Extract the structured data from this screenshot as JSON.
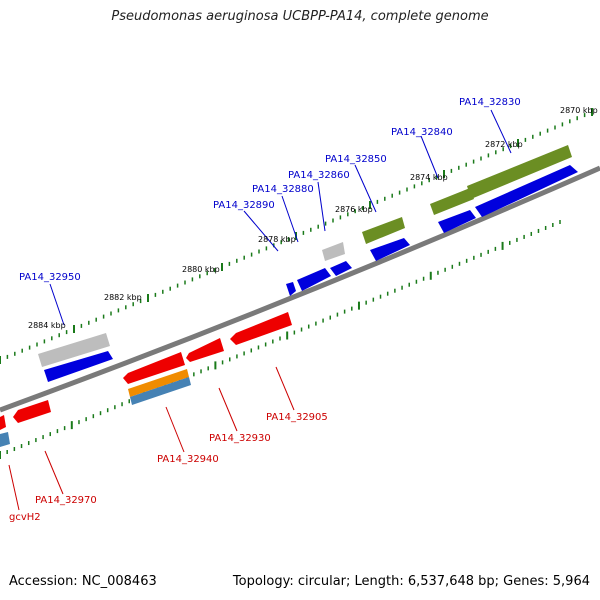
{
  "title": "Pseudomonas aeruginosa UCBPP-PA14, complete genome",
  "footer": {
    "accession": "Accession: NC_008463",
    "summary": "Topology: circular; Length: 6,537,648 bp; Genes: 5,964"
  },
  "colors": {
    "backbone": "#7a7a7a",
    "tick": "#1a7a1a",
    "forward_gene": "#0000dd",
    "reverse_gene": "#ee0000",
    "forward_label": "#0000cc",
    "reverse_label": "#cc0000",
    "olive_feature": "#6b8e23",
    "gray_feature": "#bdbdbd",
    "orange_feature": "#f08c00",
    "steel_feature": "#4682b4"
  },
  "kbp_labels": [
    "2870 kbp",
    "2872 kbp",
    "2874 kbp",
    "2876 kbp",
    "2878 kbp",
    "2880 kbp",
    "2882 kbp",
    "2884 kbp"
  ],
  "forward_labels": [
    "PA14_32830",
    "PA14_32840",
    "PA14_32850",
    "PA14_32860",
    "PA14_32880",
    "PA14_32890",
    "PA14_32950"
  ],
  "reverse_labels": [
    "PA14_32905",
    "PA14_32930",
    "PA14_32940",
    "PA14_32970",
    "gcvH2"
  ]
}
